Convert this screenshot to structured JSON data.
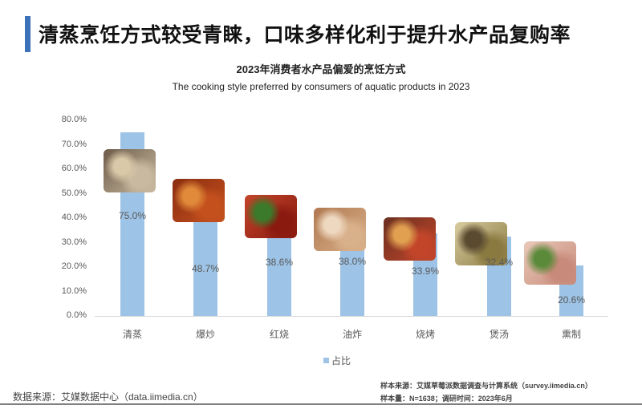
{
  "header": {
    "title": "清蒸烹饪方式较受青睐，口味多样化利于提升水产品复购率",
    "accent_color": "#3b72b8"
  },
  "chart_data": {
    "type": "bar",
    "title": "2023年消费者水产品偏爱的烹饪方式",
    "subtitle": "The cooking style preferred by consumers of aquatic products in 2023",
    "categories": [
      "清蒸",
      "爆炒",
      "红烧",
      "油炸",
      "烧烤",
      "煲汤",
      "熏制"
    ],
    "series": [
      {
        "name": "占比",
        "values": [
          75.0,
          48.7,
          38.6,
          38.0,
          33.9,
          32.4,
          20.6
        ],
        "color": "#9dc3e6"
      }
    ],
    "value_labels": [
      "75.0%",
      "48.7%",
      "38.6%",
      "38.0%",
      "33.9%",
      "32.4%",
      "20.6%"
    ],
    "xlabel": "",
    "ylabel": "",
    "ylim": [
      0,
      80
    ],
    "yticks": [
      "80.0%",
      "70.0%",
      "60.0%",
      "50.0%",
      "40.0%",
      "30.0%",
      "20.0%",
      "10.0%",
      "0.0%"
    ],
    "grid": false,
    "legend_position": "bottom",
    "food_images": [
      "seafood-platter",
      "stir-fried-crab",
      "braised-dish",
      "fried-shrimp",
      "grilled-skewers",
      "soup-pot",
      "smoked-meat"
    ]
  },
  "legend": {
    "label": "占比"
  },
  "footer": {
    "data_source": "数据来源：艾媒数据中心（data.iimedia.cn）",
    "sample_source": "样本来源：艾媒草莓派数据调查与计算系统（survey.iimedia.cn）",
    "sample_info": "样本量：N=1638；调研时间：2023年6月"
  }
}
